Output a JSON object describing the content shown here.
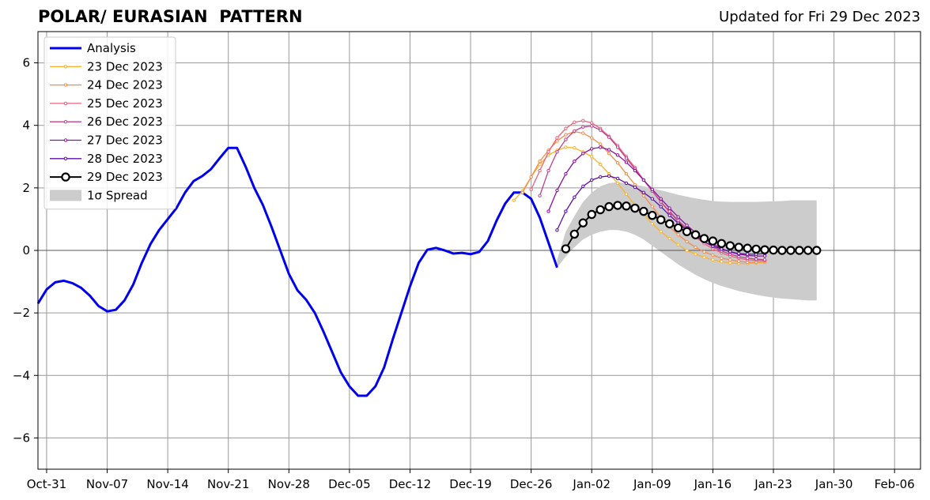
{
  "header": {
    "title": "POLAR/ EURASIAN  PATTERN",
    "updated": "Updated for Fri 29 Dec 2023"
  },
  "chart_data": {
    "type": "line",
    "title": "POLAR/ EURASIAN  PATTERN",
    "xlabel": "",
    "ylabel": "",
    "x_unit": "days",
    "xlim": [
      "2023-10-30",
      "2024-02-09"
    ],
    "ylim": [
      -7,
      7
    ],
    "grid": true,
    "legend_position": "top-left",
    "x_ticks": [
      {
        "date": "2023-10-31",
        "label": "Oct-31"
      },
      {
        "date": "2023-11-07",
        "label": "Nov-07"
      },
      {
        "date": "2023-11-14",
        "label": "Nov-14"
      },
      {
        "date": "2023-11-21",
        "label": "Nov-21"
      },
      {
        "date": "2023-11-28",
        "label": "Nov-28"
      },
      {
        "date": "2023-12-05",
        "label": "Dec-05"
      },
      {
        "date": "2023-12-12",
        "label": "Dec-12"
      },
      {
        "date": "2023-12-19",
        "label": "Dec-19"
      },
      {
        "date": "2023-12-26",
        "label": "Dec-26"
      },
      {
        "date": "2024-01-02",
        "label": "Jan-02"
      },
      {
        "date": "2024-01-09",
        "label": "Jan-09"
      },
      {
        "date": "2024-01-16",
        "label": "Jan-16"
      },
      {
        "date": "2024-01-23",
        "label": "Jan-23"
      },
      {
        "date": "2024-01-30",
        "label": "Jan-30"
      },
      {
        "date": "2024-02-06",
        "label": "Feb-06"
      }
    ],
    "y_ticks": [
      {
        "value": -6,
        "label": "−6"
      },
      {
        "value": -4,
        "label": "−4"
      },
      {
        "value": -2,
        "label": "−2"
      },
      {
        "value": 0,
        "label": "0"
      },
      {
        "value": 2,
        "label": "2"
      },
      {
        "value": 4,
        "label": "4"
      },
      {
        "value": 6,
        "label": "6"
      }
    ],
    "analysis": {
      "name": "Analysis",
      "color": "#0000ee",
      "start_date": "2023-10-30",
      "values": [
        -1.7,
        -1.25,
        -1.02,
        -0.97,
        -1.05,
        -1.2,
        -1.45,
        -1.78,
        -1.95,
        -1.9,
        -1.6,
        -1.1,
        -0.4,
        0.2,
        0.65,
        1.0,
        1.35,
        1.85,
        2.22,
        2.38,
        2.6,
        2.95,
        3.28,
        3.28,
        2.68,
        2.0,
        1.45,
        0.75,
        0.0,
        -0.75,
        -1.28,
        -1.58,
        -2.0,
        -2.6,
        -3.25,
        -3.9,
        -4.35,
        -4.65,
        -4.65,
        -4.35,
        -3.75,
        -2.85,
        -2.0,
        -1.15,
        -0.4,
        0.02,
        0.08,
        0.0,
        -0.1,
        -0.08,
        -0.12,
        -0.05,
        0.3,
        0.95,
        1.5,
        1.85,
        1.85,
        1.65,
        1.05,
        0.25,
        -0.55
      ]
    },
    "forecasts": [
      {
        "name": "23 Dec 2023",
        "color": "#fbb22b",
        "start_date": "2023-12-24",
        "values": [
          1.6,
          1.9,
          2.35,
          2.75,
          3.05,
          3.2,
          3.3,
          3.28,
          3.15,
          3.0,
          2.75,
          2.45,
          2.15,
          1.8,
          1.45,
          1.15,
          0.85,
          0.6,
          0.38,
          0.18,
          0.0,
          -0.12,
          -0.22,
          -0.3,
          -0.36,
          -0.4,
          -0.42,
          -0.42,
          -0.4,
          -0.38
        ]
      },
      {
        "name": "24 Dec 2023",
        "color": "#f58b4b",
        "start_date": "2023-12-25",
        "values": [
          1.85,
          2.35,
          2.85,
          3.2,
          3.5,
          3.7,
          3.8,
          3.75,
          3.6,
          3.4,
          3.1,
          2.8,
          2.45,
          2.1,
          1.75,
          1.4,
          1.05,
          0.75,
          0.5,
          0.28,
          0.1,
          -0.05,
          -0.15,
          -0.25,
          -0.3,
          -0.35,
          -0.38,
          -0.38,
          -0.36
        ]
      },
      {
        "name": "25 Dec 2023",
        "color": "#e8637a",
        "start_date": "2023-12-26",
        "values": [
          1.95,
          2.55,
          3.15,
          3.6,
          3.9,
          4.1,
          4.15,
          4.08,
          3.9,
          3.65,
          3.35,
          3.0,
          2.65,
          2.25,
          1.9,
          1.55,
          1.22,
          0.92,
          0.65,
          0.42,
          0.22,
          0.05,
          -0.08,
          -0.18,
          -0.25,
          -0.3,
          -0.32,
          -0.32
        ]
      },
      {
        "name": "26 Dec 2023",
        "color": "#c0408f",
        "start_date": "2023-12-27",
        "values": [
          1.75,
          2.55,
          3.15,
          3.55,
          3.82,
          3.95,
          3.98,
          3.85,
          3.62,
          3.3,
          2.95,
          2.6,
          2.25,
          1.9,
          1.55,
          1.25,
          0.95,
          0.7,
          0.48,
          0.28,
          0.12,
          -0.02,
          -0.12,
          -0.2,
          -0.25,
          -0.28,
          -0.3
        ]
      },
      {
        "name": "27 Dec 2023",
        "color": "#8d10a2",
        "start_date": "2023-12-28",
        "values": [
          1.25,
          1.92,
          2.45,
          2.85,
          3.1,
          3.25,
          3.3,
          3.22,
          3.05,
          2.82,
          2.55,
          2.25,
          1.95,
          1.65,
          1.35,
          1.07,
          0.8,
          0.57,
          0.38,
          0.2,
          0.06,
          -0.05,
          -0.12,
          -0.16,
          -0.18,
          -0.18
        ]
      },
      {
        "name": "28 Dec 2023",
        "color": "#5c0ea8",
        "start_date": "2023-12-29",
        "values": [
          0.65,
          1.25,
          1.7,
          2.05,
          2.25,
          2.35,
          2.38,
          2.3,
          2.15,
          2.02,
          1.85,
          1.65,
          1.4,
          1.12,
          0.87,
          0.65,
          0.45,
          0.28,
          0.14,
          0.04,
          -0.04,
          -0.1,
          -0.12,
          -0.12,
          -0.1
        ]
      },
      {
        "name": "29 Dec 2023",
        "color": "#000000",
        "start_date": "2023-12-30",
        "values": [
          0.05,
          0.52,
          0.88,
          1.15,
          1.3,
          1.4,
          1.44,
          1.42,
          1.35,
          1.25,
          1.12,
          0.98,
          0.85,
          0.72,
          0.6,
          0.5,
          0.38,
          0.3,
          0.22,
          0.15,
          0.1,
          0.07,
          0.04,
          0.02,
          0.01,
          0.0,
          0.0,
          0.0,
          0.0,
          0.0
        ]
      }
    ],
    "spread": {
      "name": "1σ Spread",
      "color": "#cccccc",
      "start_date": "2023-12-29",
      "upper": [
        -0.3,
        0.6,
        1.1,
        1.55,
        1.85,
        2.05,
        2.15,
        2.18,
        2.15,
        2.1,
        2.05,
        1.98,
        1.92,
        1.85,
        1.78,
        1.72,
        1.66,
        1.62,
        1.58,
        1.56,
        1.55,
        1.55,
        1.55,
        1.55,
        1.56,
        1.57,
        1.58,
        1.6,
        1.6,
        1.6,
        1.6
      ],
      "lower": [
        -0.55,
        -0.2,
        0.1,
        0.35,
        0.5,
        0.6,
        0.65,
        0.65,
        0.6,
        0.5,
        0.35,
        0.15,
        -0.05,
        -0.25,
        -0.45,
        -0.62,
        -0.78,
        -0.92,
        -1.04,
        -1.14,
        -1.22,
        -1.3,
        -1.36,
        -1.42,
        -1.47,
        -1.51,
        -1.54,
        -1.56,
        -1.58,
        -1.6,
        -1.6
      ]
    }
  }
}
